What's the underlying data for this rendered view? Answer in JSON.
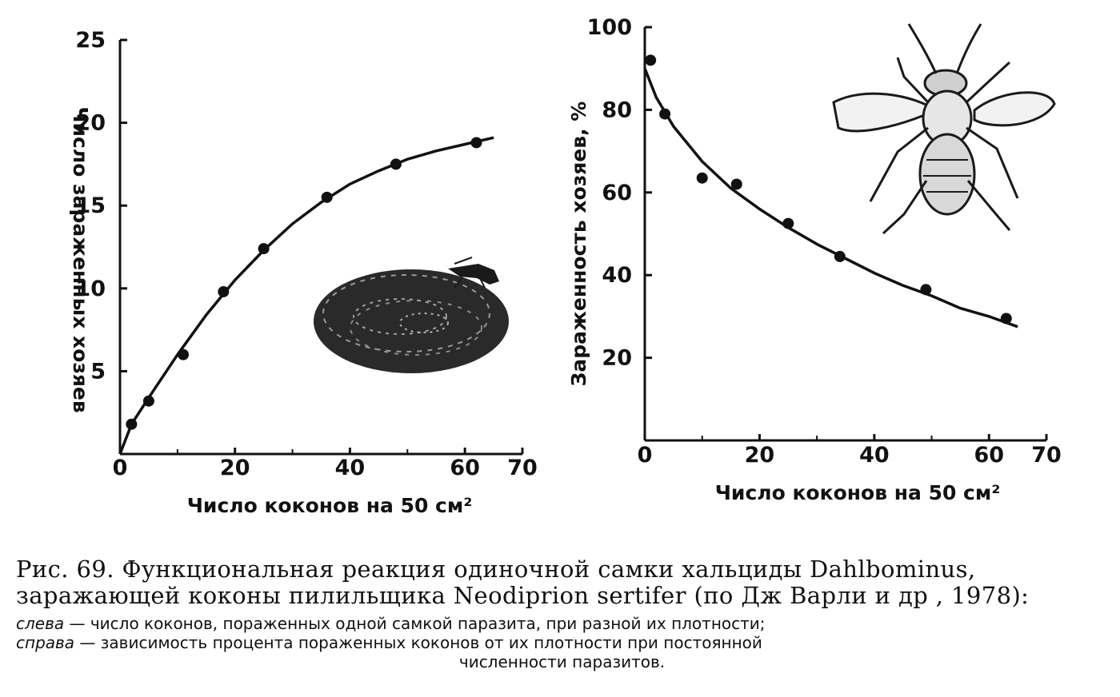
{
  "chart_data": [
    {
      "type": "line",
      "x_ticks": [
        "0",
        "20",
        "40",
        "60",
        "70"
      ],
      "y_ticks": [
        "5",
        "10",
        "15",
        "20",
        "25"
      ],
      "xlabel": "Число коконов на 50 см²",
      "ylabel": "Число зараженных хозяев",
      "xlim": [
        0,
        70
      ],
      "ylim": [
        0,
        25
      ],
      "points": [
        {
          "x": 2,
          "y": 1.8
        },
        {
          "x": 5,
          "y": 3.2
        },
        {
          "x": 11,
          "y": 6.0
        },
        {
          "x": 18,
          "y": 9.8
        },
        {
          "x": 25,
          "y": 12.4
        },
        {
          "x": 36,
          "y": 15.5
        },
        {
          "x": 48,
          "y": 17.5
        },
        {
          "x": 62,
          "y": 18.8
        }
      ],
      "curve": [
        {
          "x": 0,
          "y": 0
        },
        {
          "x": 2,
          "y": 1.8
        },
        {
          "x": 5,
          "y": 3.4
        },
        {
          "x": 10,
          "y": 6.0
        },
        {
          "x": 15,
          "y": 8.4
        },
        {
          "x": 20,
          "y": 10.5
        },
        {
          "x": 25,
          "y": 12.3
        },
        {
          "x": 30,
          "y": 13.9
        },
        {
          "x": 35,
          "y": 15.2
        },
        {
          "x": 40,
          "y": 16.3
        },
        {
          "x": 45,
          "y": 17.1
        },
        {
          "x": 50,
          "y": 17.8
        },
        {
          "x": 55,
          "y": 18.3
        },
        {
          "x": 60,
          "y": 18.7
        },
        {
          "x": 65,
          "y": 19.1
        }
      ],
      "grid": false
    },
    {
      "type": "line",
      "x_ticks": [
        "0",
        "20",
        "40",
        "60",
        "70"
      ],
      "y_ticks": [
        "20",
        "40",
        "60",
        "80",
        "100"
      ],
      "xlabel": "Число коконов на 50 см²",
      "ylabel": "Зараженность хозяев, %",
      "xlim": [
        0,
        70
      ],
      "ylim": [
        0,
        100
      ],
      "points": [
        {
          "x": 1,
          "y": 92
        },
        {
          "x": 3.5,
          "y": 79
        },
        {
          "x": 10,
          "y": 63.5
        },
        {
          "x": 16,
          "y": 62
        },
        {
          "x": 25,
          "y": 52.5
        },
        {
          "x": 34,
          "y": 44.5
        },
        {
          "x": 49,
          "y": 36.5
        },
        {
          "x": 63,
          "y": 29.5
        }
      ],
      "curve": [
        {
          "x": 0,
          "y": 90
        },
        {
          "x": 2,
          "y": 83
        },
        {
          "x": 5,
          "y": 76
        },
        {
          "x": 10,
          "y": 67.5
        },
        {
          "x": 15,
          "y": 61
        },
        {
          "x": 20,
          "y": 56
        },
        {
          "x": 25,
          "y": 51.5
        },
        {
          "x": 30,
          "y": 47.5
        },
        {
          "x": 35,
          "y": 44
        },
        {
          "x": 40,
          "y": 40.5
        },
        {
          "x": 45,
          "y": 37.5
        },
        {
          "x": 50,
          "y": 35
        },
        {
          "x": 55,
          "y": 32
        },
        {
          "x": 60,
          "y": 30
        },
        {
          "x": 65,
          "y": 27.5
        }
      ],
      "grid": false
    }
  ],
  "illustrations": {
    "left": "cocoon-with-wasp-icon",
    "right": "chalcid-wasp-icon"
  },
  "caption": {
    "main": "Рис. 69. Функциональная реакция одиночной самки хальциды Dahlbominus, заражающей коконы пилильщика Neodiprion sertifer (по Дж Варли и др , 1978):",
    "left_label": "слева",
    "left_text": " — число коконов, пораженных одной самкой паразита, при разной их плотности;",
    "right_label": "справа",
    "right_text": " — зависимость процента пораженных коконов от их плотности при постоянной",
    "tail": "численности паразитов."
  },
  "colors": {
    "ink": "#111111",
    "cocoon": "#2a2a2a",
    "background": "#ffffff"
  }
}
